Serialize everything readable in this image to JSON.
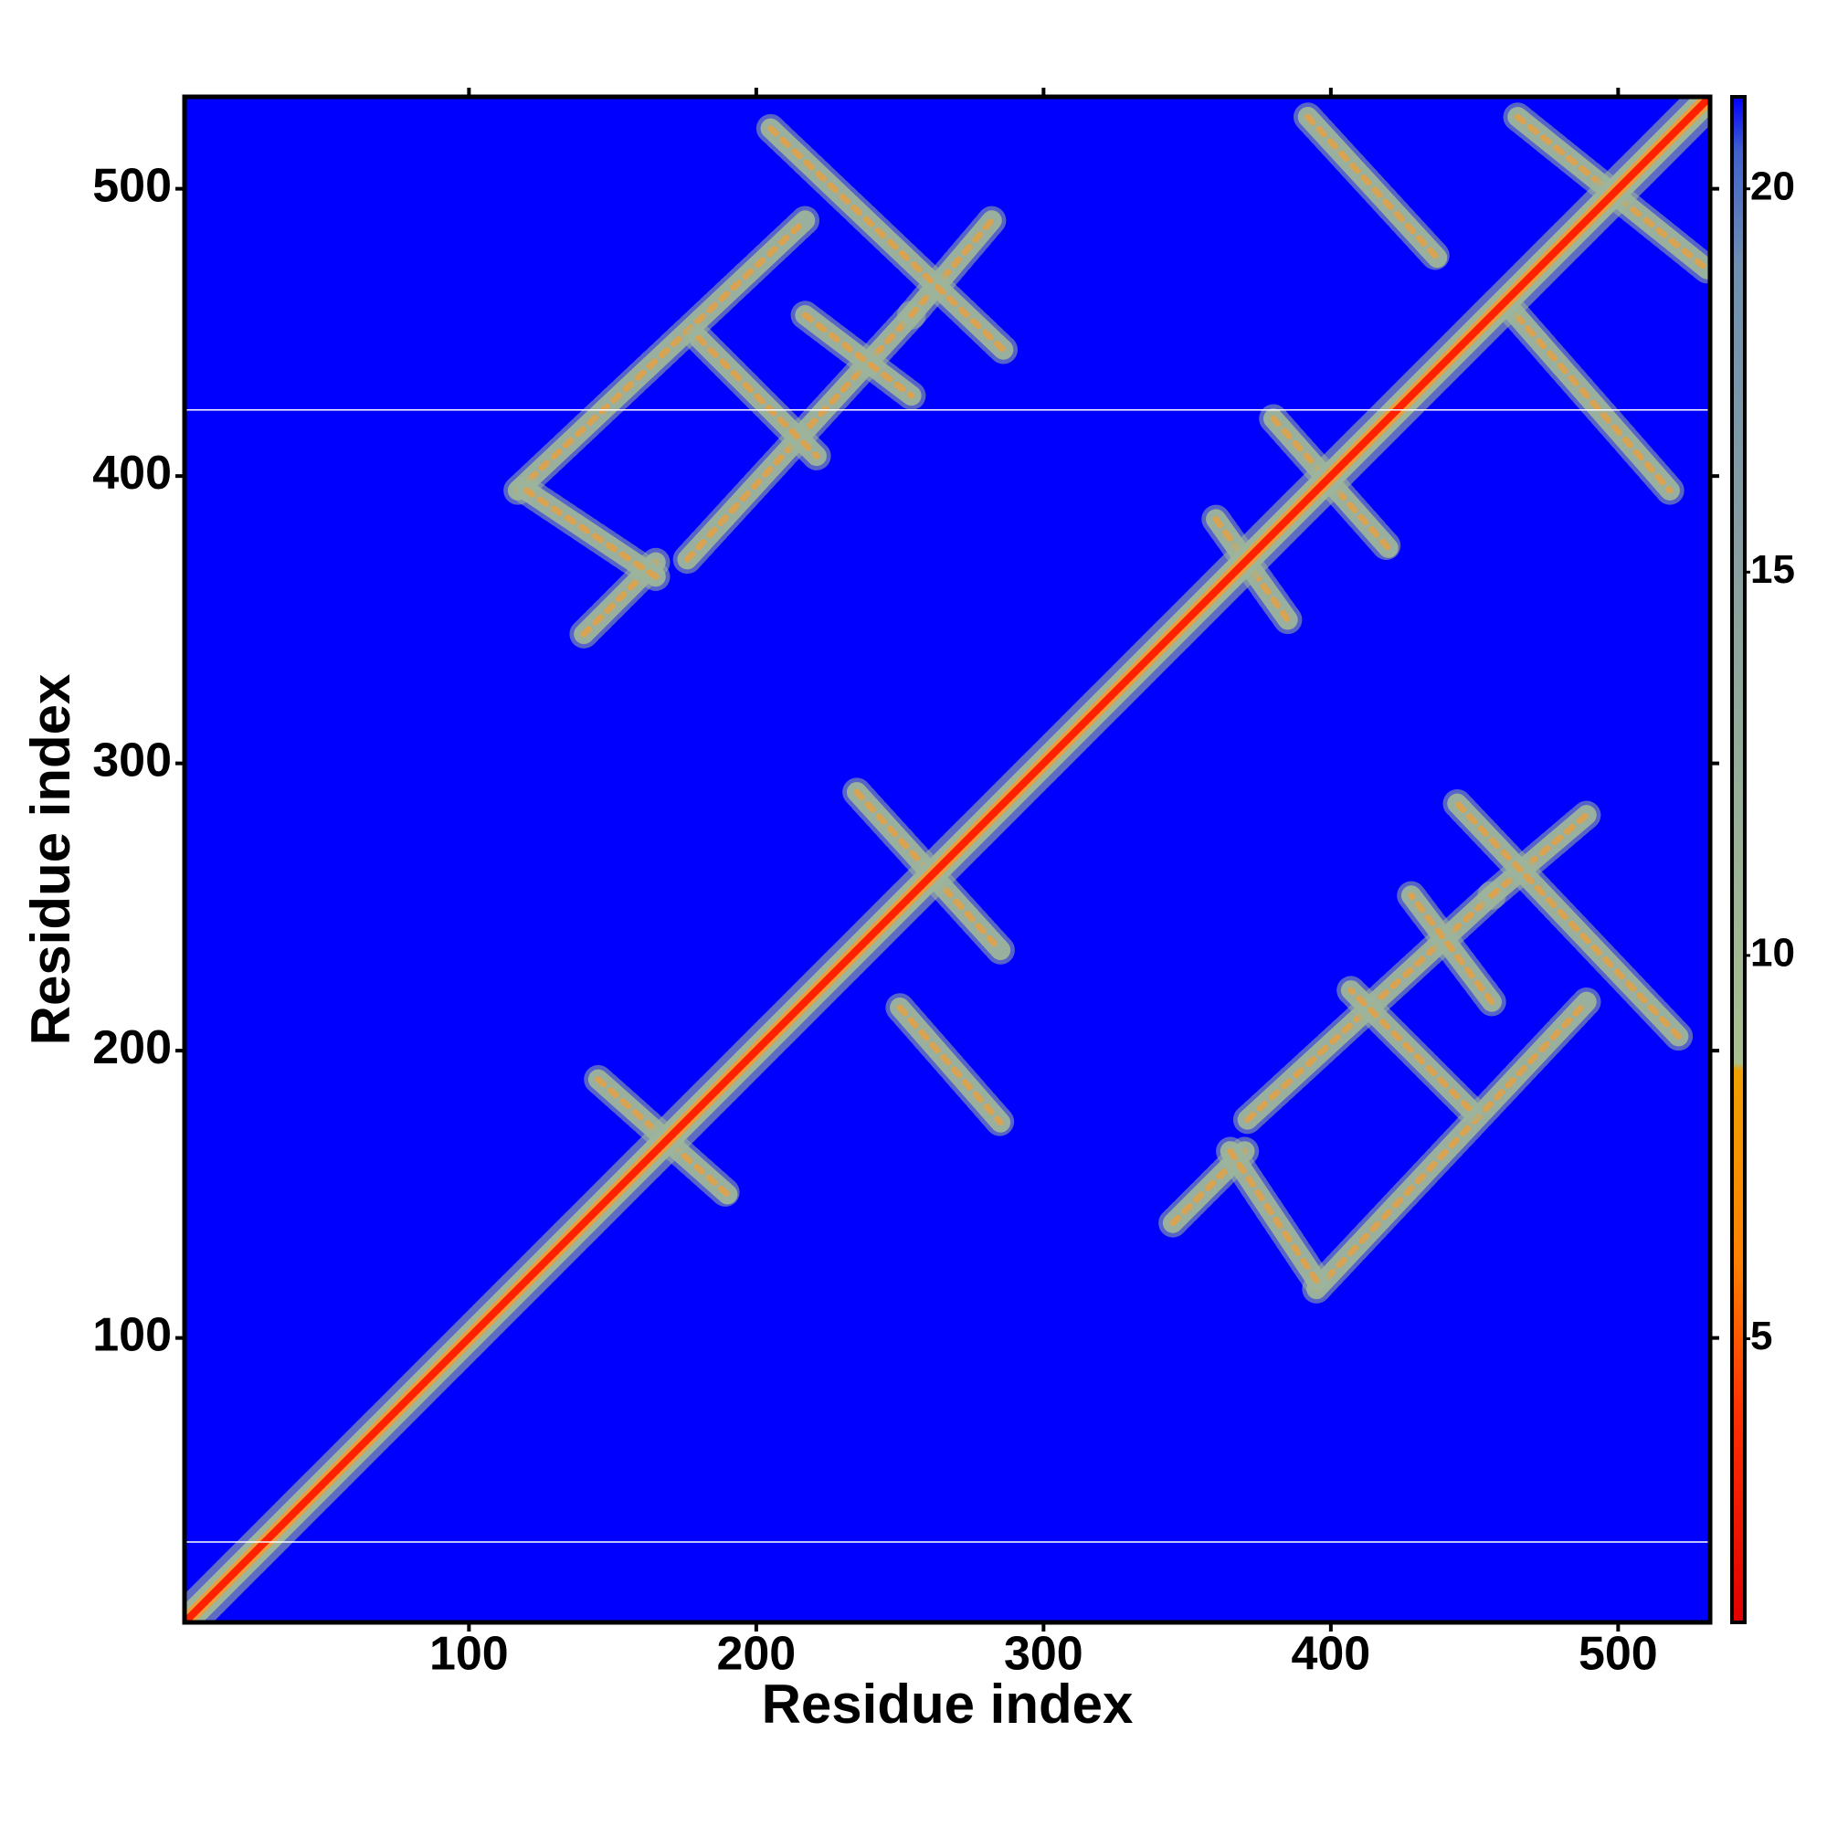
{
  "chart_data": {
    "type": "heatmap",
    "xlabel": "Residue index",
    "ylabel": "Residue index",
    "xlim": [
      1,
      532
    ],
    "ylim": [
      1,
      532
    ],
    "xticks": [
      100,
      200,
      300,
      400,
      500
    ],
    "yticks": [
      100,
      200,
      300,
      400,
      500
    ],
    "background_color": "#0000ff",
    "band_color": "#9db59c",
    "core_color": "#e8a040",
    "diagonal_color": "#ff2000",
    "diagonal": [
      1,
      1,
      532,
      532
    ],
    "segments": [
      [
        117,
        395,
        217,
        489
      ],
      [
        176,
        371,
        254,
        456
      ],
      [
        254,
        456,
        282,
        489
      ],
      [
        180,
        448,
        221,
        407
      ],
      [
        205,
        521,
        286,
        444
      ],
      [
        217,
        456,
        254,
        428
      ],
      [
        140,
        345,
        165,
        370
      ],
      [
        120,
        395,
        165,
        365
      ],
      [
        395,
        117,
        489,
        217
      ],
      [
        371,
        176,
        456,
        254
      ],
      [
        456,
        254,
        489,
        282
      ],
      [
        448,
        180,
        407,
        221
      ],
      [
        521,
        205,
        444,
        286
      ],
      [
        456,
        217,
        428,
        254
      ],
      [
        345,
        140,
        370,
        165
      ],
      [
        395,
        120,
        365,
        165
      ],
      [
        235,
        290,
        285,
        235
      ],
      [
        145,
        190,
        190,
        150
      ],
      [
        250,
        215,
        285,
        175
      ],
      [
        360,
        385,
        385,
        350
      ],
      [
        380,
        420,
        420,
        375
      ],
      [
        392,
        525,
        437,
        476
      ],
      [
        465,
        525,
        531,
        472
      ],
      [
        461,
        460,
        518,
        395
      ]
    ],
    "hlines": [
      423,
      29
    ],
    "hline_color": "#ffffff",
    "colorbar": {
      "clim": [
        1.3,
        21.2
      ],
      "ticks": [
        5,
        10,
        15,
        20
      ],
      "stops": [
        {
          "value": 1.3,
          "color": "#e00000"
        },
        {
          "value": 4,
          "color": "#ff3000"
        },
        {
          "value": 6,
          "color": "#ff8000"
        },
        {
          "value": 8.5,
          "color": "#f0a000"
        },
        {
          "value": 8.6,
          "color": "#a8c090"
        },
        {
          "value": 15,
          "color": "#8aa0a0"
        },
        {
          "value": 19,
          "color": "#7090b0"
        },
        {
          "value": 20.5,
          "color": "#4060d0"
        },
        {
          "value": 21.2,
          "color": "#0000ff"
        }
      ]
    }
  }
}
